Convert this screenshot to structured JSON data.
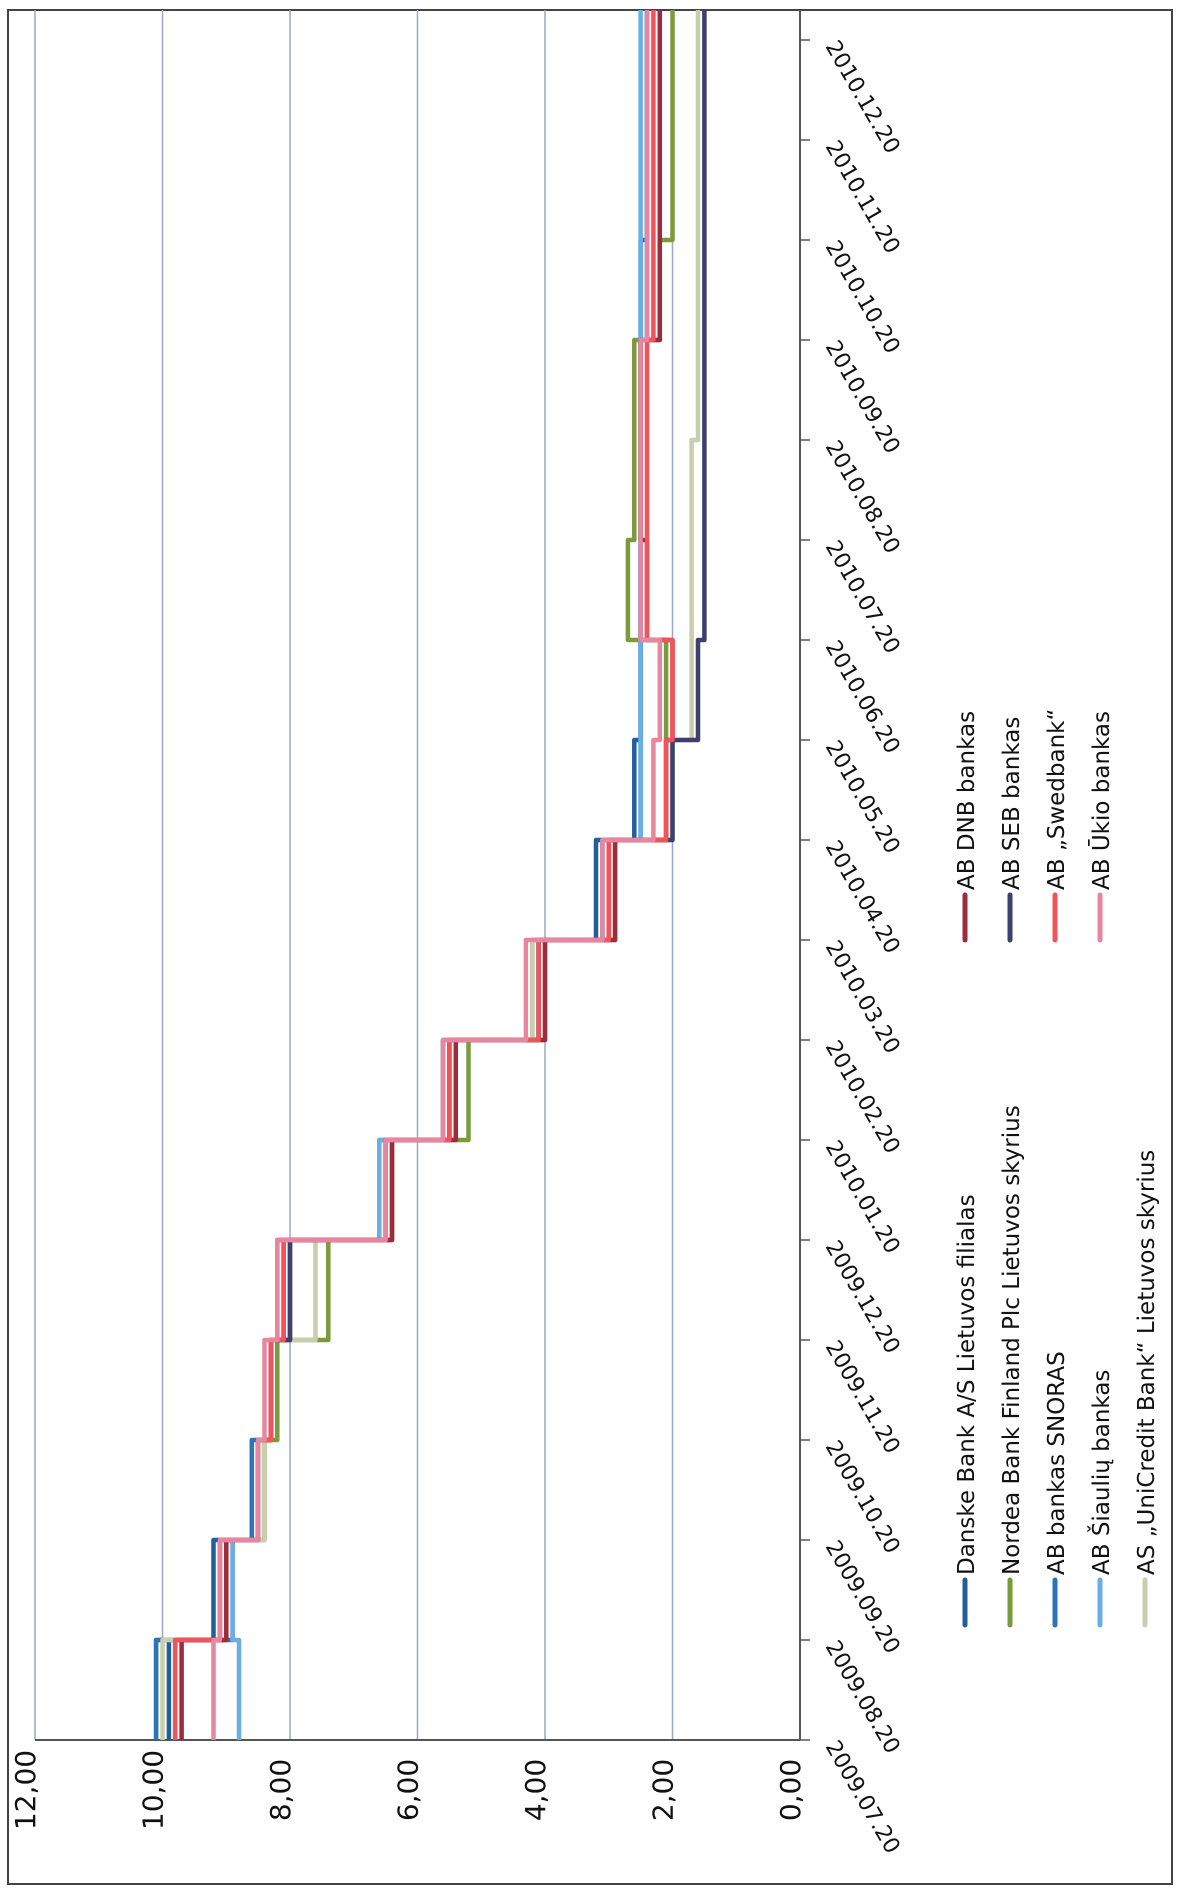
{
  "chart_data": {
    "type": "line",
    "title": "",
    "xlabel": "",
    "ylabel": "",
    "ylim": [
      0,
      12
    ],
    "grid": true,
    "orientation": "rotated-90-clockwise",
    "y_ticks": [
      "0,00",
      "2,00",
      "4,00",
      "6,00",
      "8,00",
      "10,00",
      "12,00"
    ],
    "x_ticks": [
      "2009.07.20",
      "2009.08.20",
      "2009.09.20",
      "2009.10.20",
      "2009.11.20",
      "2009.12.20",
      "2010.01.20",
      "2010.02.20",
      "2010.03.20",
      "2010.04.20",
      "2010.05.20",
      "2010.06.20",
      "2010.07.20",
      "2010.08.20",
      "2010.09.20",
      "2010.10.20",
      "2010.11.20",
      "2010.12.20"
    ],
    "legend_position": "bottom",
    "series": [
      {
        "name": "Danske Bank A/S Lietuvos filialas",
        "color": "#1f5f9a",
        "values": [
          9.9,
          9.2,
          8.5,
          8.3,
          8.2,
          6.4,
          5.6,
          4.1,
          3.2,
          2.6,
          2.5,
          2.5,
          2.5,
          2.5,
          2.4,
          2.4,
          2.4,
          2.4
        ]
      },
      {
        "name": "Nordea Bank Finland Plc Lietuvos skyrius",
        "color": "#7a9a3c",
        "values": [
          10.1,
          9.0,
          8.4,
          8.2,
          7.4,
          6.4,
          5.2,
          4.0,
          2.9,
          2.1,
          2.1,
          2.7,
          2.6,
          2.6,
          2.2,
          2.0,
          2.0,
          2.0
        ]
      },
      {
        "name": "AB bankas SNORAS",
        "color": "#2b74b8",
        "values": [
          10.1,
          8.9,
          8.6,
          8.3,
          8.1,
          6.6,
          5.6,
          4.2,
          3.1,
          2.5,
          2.5,
          2.5,
          2.5,
          2.5,
          2.5,
          2.4,
          2.4,
          2.4
        ]
      },
      {
        "name": "AB Šiaulių bankas",
        "color": "#6aaee3",
        "values": [
          8.8,
          8.9,
          8.5,
          8.3,
          8.2,
          6.6,
          5.5,
          4.2,
          3.1,
          2.5,
          2.5,
          2.5,
          2.5,
          2.5,
          2.5,
          2.5,
          2.5,
          2.5
        ]
      },
      {
        "name": "AS „UniCredit Bank“ Lietuvos skyrius",
        "color": "#c8cfac",
        "values": [
          10.0,
          9.1,
          8.4,
          8.3,
          7.6,
          6.4,
          5.6,
          4.2,
          2.9,
          2.0,
          1.7,
          1.7,
          1.7,
          1.6,
          1.6,
          1.6,
          1.6,
          1.6
        ]
      },
      {
        "name": "AB DNB bankas",
        "color": "#9c2b3b",
        "values": [
          9.7,
          9.0,
          8.5,
          8.3,
          8.0,
          6.4,
          5.4,
          4.0,
          2.9,
          2.1,
          2.0,
          2.4,
          2.5,
          2.5,
          2.2,
          2.2,
          2.2,
          2.2
        ]
      },
      {
        "name": "AB SEB bankas",
        "color": "#3d3f6e",
        "values": [
          9.8,
          9.1,
          8.5,
          8.3,
          8.0,
          6.5,
          5.5,
          4.1,
          3.0,
          2.0,
          1.6,
          1.5,
          1.5,
          1.5,
          1.5,
          1.5,
          1.5,
          1.5
        ]
      },
      {
        "name": "AB „Swedbank“",
        "color": "#f0535a",
        "values": [
          9.8,
          9.1,
          8.5,
          8.3,
          8.1,
          6.5,
          5.5,
          4.1,
          3.0,
          2.1,
          2.0,
          2.4,
          2.4,
          2.4,
          2.3,
          2.3,
          2.3,
          2.3
        ]
      },
      {
        "name": "AB Ūkio bankas",
        "color": "#e886a0",
        "values": [
          9.2,
          9.1,
          8.5,
          8.4,
          8.2,
          6.5,
          5.6,
          4.3,
          3.1,
          2.3,
          2.2,
          2.5,
          2.5,
          2.5,
          2.4,
          2.4,
          2.4,
          2.4
        ]
      }
    ]
  }
}
